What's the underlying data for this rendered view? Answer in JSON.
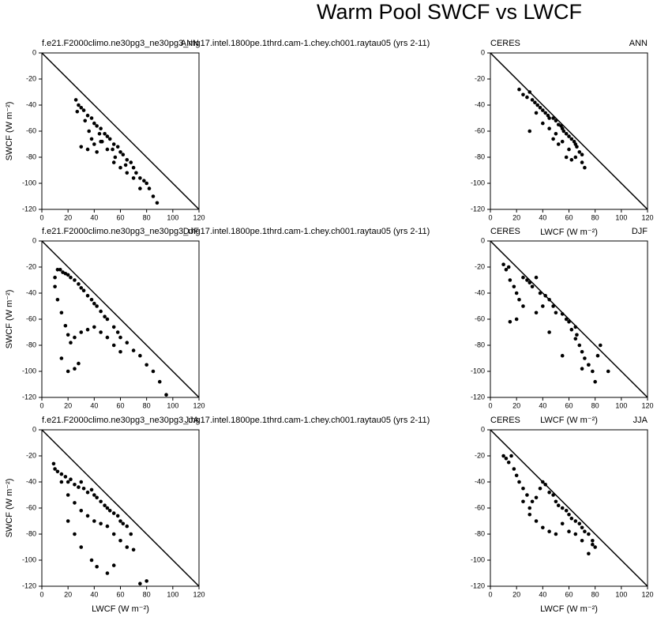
{
  "title": "Warm Pool SWCF vs LWCF",
  "chart_data": [
    {
      "type": "scatter",
      "title_left": "f.e21.F2000climo.ne30pg3_ne30pg3_mg17.intel.1800pe.1thrd.cam-1.chey.ch001.raytau05 (yrs 2-11)",
      "title_right": "ANN",
      "ylabel": "SWCF (W m⁻²)",
      "color": "#000000",
      "xlim": [
        0,
        120
      ],
      "ylim": [
        -120,
        0
      ],
      "xticks": [
        0,
        20,
        40,
        60,
        80,
        100,
        120
      ],
      "yticks": [
        0,
        -20,
        -40,
        -60,
        -80,
        -100,
        -120
      ],
      "x": [
        26,
        28,
        30,
        27,
        32,
        35,
        33,
        38,
        40,
        36,
        42,
        45,
        44,
        48,
        50,
        46,
        52,
        55,
        54,
        58,
        60,
        56,
        62,
        65,
        64,
        68,
        70,
        72,
        75,
        78,
        80,
        82,
        85,
        88,
        30,
        35,
        40,
        45,
        50,
        42,
        38,
        55,
        60,
        65,
        70,
        75
      ],
      "values": [
        -36,
        -40,
        -42,
        -45,
        -44,
        -48,
        -52,
        -50,
        -54,
        -60,
        -56,
        -58,
        -62,
        -62,
        -64,
        -68,
        -66,
        -70,
        -74,
        -72,
        -76,
        -80,
        -78,
        -82,
        -86,
        -84,
        -88,
        -92,
        -96,
        -98,
        -100,
        -104,
        -110,
        -115,
        -72,
        -74,
        -70,
        -68,
        -74,
        -76,
        -66,
        -84,
        -88,
        -92,
        -96,
        -104
      ]
    },
    {
      "type": "scatter",
      "title_left": "CERES",
      "title_right": "ANN",
      "xlabel": "LWCF (W m⁻²)",
      "color": "#000000",
      "xlim": [
        0,
        120
      ],
      "ylim": [
        -120,
        0
      ],
      "xticks": [
        0,
        20,
        40,
        60,
        80,
        100,
        120
      ],
      "yticks": [
        0,
        -20,
        -40,
        -60,
        -80,
        -100,
        -120
      ],
      "x": [
        22,
        25,
        28,
        30,
        32,
        34,
        36,
        38,
        40,
        42,
        44,
        45,
        48,
        50,
        52,
        54,
        55,
        56,
        58,
        60,
        62,
        64,
        65,
        66,
        68,
        70,
        72,
        30,
        35,
        40,
        45,
        50,
        55,
        60,
        65,
        70,
        48,
        52,
        58,
        62
      ],
      "values": [
        -28,
        -32,
        -34,
        -30,
        -36,
        -38,
        -40,
        -42,
        -44,
        -46,
        -48,
        -50,
        -50,
        -52,
        -55,
        -56,
        -58,
        -60,
        -62,
        -64,
        -66,
        -68,
        -70,
        -72,
        -76,
        -78,
        -88,
        -60,
        -46,
        -54,
        -58,
        -62,
        -68,
        -74,
        -80,
        -84,
        -66,
        -70,
        -80,
        -82
      ]
    },
    {
      "type": "scatter",
      "title_left": "f.e21.F2000climo.ne30pg3_ne30pg3_mg17.intel.1800pe.1thrd.cam-1.chey.ch001.raytau05 (yrs 2-11)",
      "title_right": "DJF",
      "ylabel": "SWCF (W m⁻²)",
      "color": "#000000",
      "xlim": [
        0,
        120
      ],
      "ylim": [
        -120,
        0
      ],
      "xticks": [
        0,
        20,
        40,
        60,
        80,
        100,
        120
      ],
      "yticks": [
        0,
        -20,
        -40,
        -60,
        -80,
        -100,
        -120
      ],
      "x": [
        10,
        12,
        14,
        16,
        18,
        20,
        22,
        25,
        28,
        30,
        32,
        35,
        38,
        40,
        42,
        45,
        48,
        50,
        55,
        58,
        60,
        65,
        70,
        75,
        80,
        85,
        90,
        95,
        10,
        12,
        15,
        18,
        20,
        22,
        25,
        30,
        35,
        40,
        45,
        50,
        55,
        60,
        15,
        20,
        25,
        28
      ],
      "values": [
        -28,
        -22,
        -22,
        -24,
        -25,
        -26,
        -28,
        -30,
        -33,
        -36,
        -38,
        -42,
        -45,
        -48,
        -50,
        -54,
        -58,
        -60,
        -66,
        -70,
        -74,
        -78,
        -84,
        -88,
        -95,
        -100,
        -108,
        -118,
        -35,
        -45,
        -55,
        -65,
        -72,
        -78,
        -74,
        -70,
        -68,
        -66,
        -70,
        -74,
        -80,
        -85,
        -90,
        -100,
        -98,
        -94
      ]
    },
    {
      "type": "scatter",
      "title_left": "CERES",
      "title_right": "DJF",
      "xlabel": "LWCF (W m⁻²)",
      "color": "#000000",
      "xlim": [
        0,
        120
      ],
      "ylim": [
        -120,
        0
      ],
      "xticks": [
        0,
        20,
        40,
        60,
        80,
        100,
        120
      ],
      "yticks": [
        0,
        -20,
        -40,
        -60,
        -80,
        -100,
        -120
      ],
      "x": [
        10,
        12,
        14,
        15,
        18,
        20,
        22,
        25,
        28,
        30,
        32,
        35,
        38,
        40,
        42,
        45,
        48,
        50,
        55,
        58,
        60,
        62,
        65,
        66,
        68,
        70,
        72,
        75,
        78,
        80,
        82,
        84,
        15,
        20,
        25,
        35,
        45,
        55,
        65,
        70,
        75,
        90
      ],
      "values": [
        -18,
        -22,
        -20,
        -30,
        -35,
        -40,
        -45,
        -28,
        -30,
        -32,
        -35,
        -28,
        -40,
        -50,
        -42,
        -45,
        -50,
        -55,
        -56,
        -60,
        -62,
        -68,
        -66,
        -72,
        -80,
        -85,
        -90,
        -95,
        -100,
        -108,
        -88,
        -80,
        -62,
        -60,
        -50,
        -55,
        -70,
        -88,
        -75,
        -98,
        -95,
        -100
      ]
    },
    {
      "type": "scatter",
      "title_left": "f.e21.F2000climo.ne30pg3_ne30pg3_mg17.intel.1800pe.1thrd.cam-1.chey.ch001.raytau05 (yrs 2-11)",
      "title_right": "JJA",
      "xlabel": "LWCF (W m⁻²)",
      "ylabel": "SWCF (W m⁻²)",
      "color": "#000000",
      "xlim": [
        0,
        120
      ],
      "ylim": [
        -120,
        0
      ],
      "xticks": [
        0,
        20,
        40,
        60,
        80,
        100,
        120
      ],
      "yticks": [
        0,
        -20,
        -40,
        -60,
        -80,
        -100,
        -120
      ],
      "x": [
        9,
        10,
        12,
        15,
        18,
        20,
        22,
        25,
        28,
        30,
        32,
        35,
        38,
        40,
        42,
        45,
        48,
        50,
        52,
        55,
        58,
        60,
        62,
        65,
        68,
        70,
        15,
        20,
        25,
        30,
        35,
        40,
        45,
        50,
        55,
        60,
        65,
        20,
        25,
        30,
        38,
        42,
        50,
        55,
        75,
        80
      ],
      "values": [
        -26,
        -30,
        -32,
        -34,
        -36,
        -40,
        -38,
        -42,
        -44,
        -40,
        -45,
        -48,
        -46,
        -50,
        -52,
        -55,
        -58,
        -60,
        -62,
        -64,
        -66,
        -70,
        -72,
        -74,
        -80,
        -92,
        -40,
        -50,
        -56,
        -62,
        -66,
        -70,
        -72,
        -74,
        -80,
        -85,
        -90,
        -70,
        -80,
        -90,
        -100,
        -105,
        -110,
        -104,
        -118,
        -116
      ]
    },
    {
      "type": "scatter",
      "title_left": "CERES",
      "title_right": "JJA",
      "xlabel": "LWCF (W m⁻²)",
      "color": "#000000",
      "xlim": [
        0,
        120
      ],
      "ylim": [
        -120,
        0
      ],
      "xticks": [
        0,
        20,
        40,
        60,
        80,
        100,
        120
      ],
      "yticks": [
        0,
        -20,
        -40,
        -60,
        -80,
        -100,
        -120
      ],
      "x": [
        10,
        12,
        14,
        16,
        18,
        20,
        22,
        25,
        28,
        30,
        32,
        35,
        38,
        40,
        42,
        45,
        48,
        50,
        52,
        55,
        58,
        60,
        62,
        65,
        68,
        70,
        72,
        75,
        78,
        80,
        25,
        30,
        35,
        40,
        45,
        50,
        55,
        60,
        65,
        70,
        75,
        78
      ],
      "values": [
        -20,
        -22,
        -25,
        -20,
        -30,
        -35,
        -40,
        -45,
        -50,
        -60,
        -55,
        -52,
        -45,
        -40,
        -42,
        -48,
        -50,
        -55,
        -58,
        -60,
        -62,
        -65,
        -68,
        -70,
        -72,
        -75,
        -78,
        -80,
        -85,
        -90,
        -55,
        -65,
        -70,
        -75,
        -78,
        -80,
        -72,
        -78,
        -80,
        -85,
        -95,
        -88
      ]
    }
  ]
}
